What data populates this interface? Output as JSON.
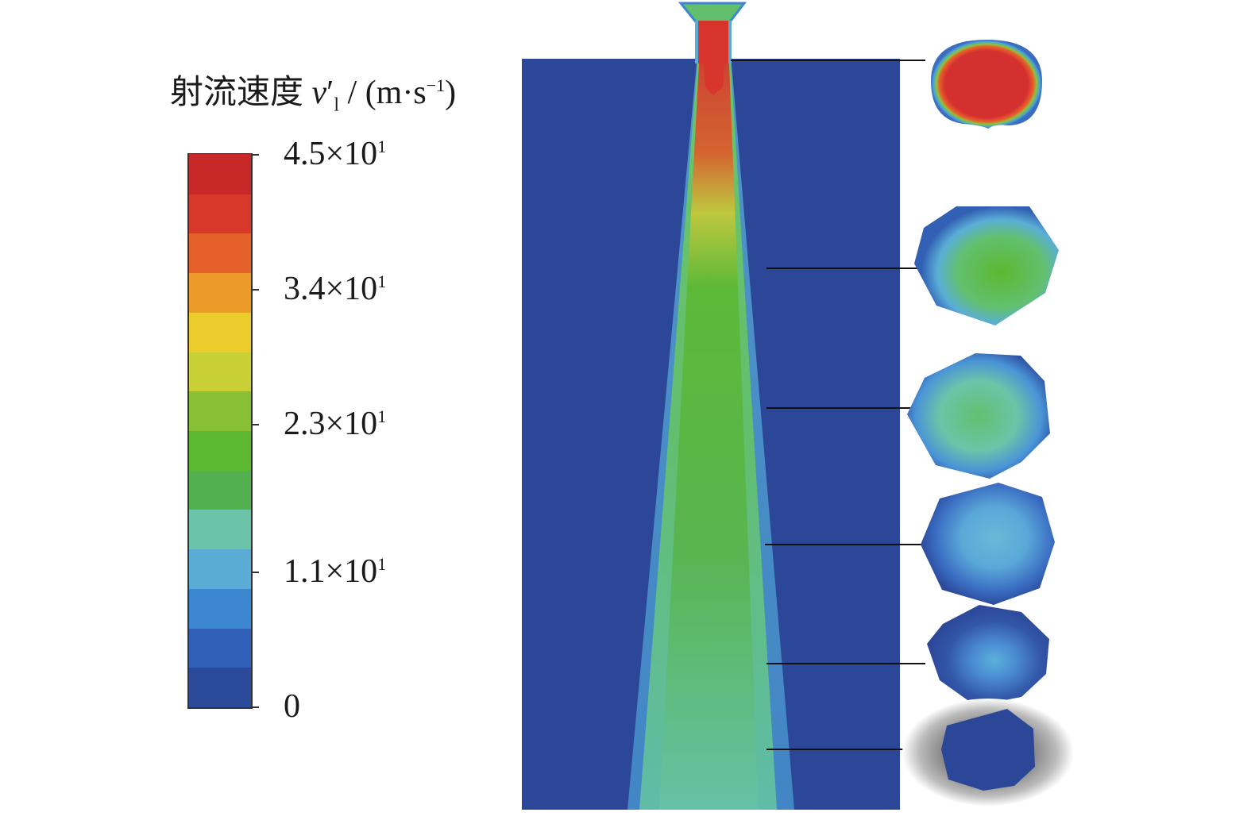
{
  "legend": {
    "title_prefix": "射流速度 ",
    "title_var": "v",
    "title_prime": "′",
    "title_sub": "l",
    "title_unit_open": " / (m·s",
    "title_unit_sup": "−1",
    "title_unit_close": ")",
    "ticks": [
      {
        "value": 45,
        "mantissa": "4.5×10",
        "exp": "1"
      },
      {
        "value": 34,
        "mantissa": "3.4×10",
        "exp": "1"
      },
      {
        "value": 23,
        "mantissa": "2.3×10",
        "exp": "1"
      },
      {
        "value": 11,
        "mantissa": "1.1×10",
        "exp": "1"
      },
      {
        "value": 0,
        "mantissa": "0",
        "exp": ""
      }
    ],
    "range": [
      0,
      45
    ],
    "colormap": [
      "#2c4a9a",
      "#3060b8",
      "#3c86d0",
      "#5aacd4",
      "#6cc4a8",
      "#52b04e",
      "#5cb830",
      "#88c035",
      "#c8d035",
      "#eccc2a",
      "#ec9a2a",
      "#e6602a",
      "#d8382a",
      "#c82828"
    ]
  },
  "domain": {
    "background_color": "#2c4797",
    "jet_core_color": "#d8362c"
  },
  "cross_sections": [
    {
      "id": 1,
      "peak_color": "#d43030"
    },
    {
      "id": 2,
      "peak_color": "#5cb830"
    },
    {
      "id": 3,
      "peak_color": "#5ebf7a"
    },
    {
      "id": 4,
      "peak_color": "#5aa8d8"
    },
    {
      "id": 5,
      "peak_color": "#4a88d0"
    },
    {
      "id": 6,
      "peak_color": "#2c4797"
    }
  ]
}
